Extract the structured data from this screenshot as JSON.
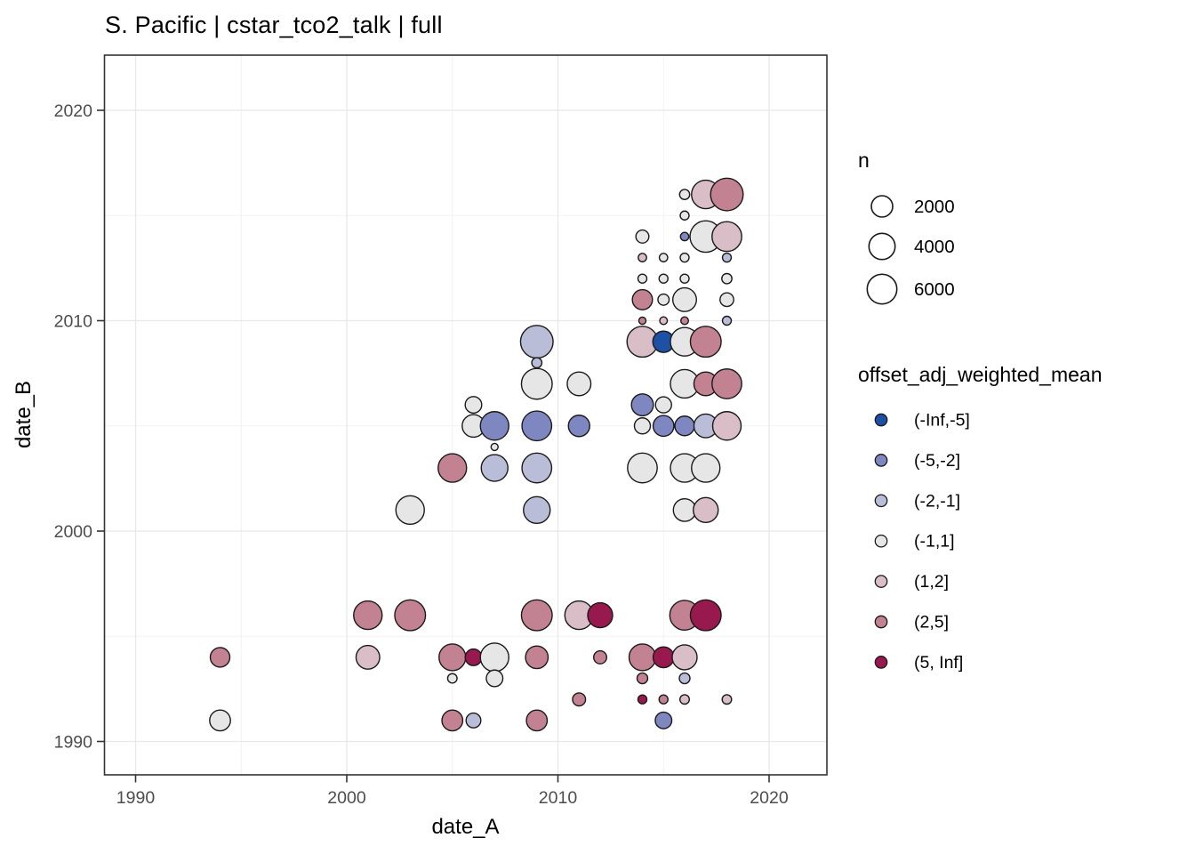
{
  "title": "S. Pacific | cstar_tco2_talk | full",
  "x_axis": {
    "label": "date_A",
    "ticks": [
      1990,
      2000,
      2010,
      2020
    ],
    "minor": [
      1995,
      2005,
      2015
    ],
    "range": [
      1988.5,
      2022.7
    ]
  },
  "y_axis": {
    "label": "date_B",
    "ticks": [
      1990,
      2000,
      2010,
      2020
    ],
    "minor": [
      1995,
      2005,
      2015
    ],
    "range": [
      1988.4,
      2022.6
    ]
  },
  "legend_size": {
    "title": "n",
    "entries": [
      {
        "label": "2000",
        "n": 2000,
        "r": 12
      },
      {
        "label": "4000",
        "n": 4000,
        "r": 14.7
      },
      {
        "label": "6000",
        "n": 6000,
        "r": 16.7
      }
    ]
  },
  "legend_color": {
    "title": "offset_adj_weighted_mean",
    "entries": [
      {
        "label": "(-Inf,-5]",
        "color": "#1e51a5"
      },
      {
        "label": "(-5,-2]",
        "color": "#7f87c1"
      },
      {
        "label": "(-2,-1]",
        "color": "#babdd8"
      },
      {
        "label": "(-1,1]",
        "color": "#e6e6e6"
      },
      {
        "label": "(1,2]",
        "color": "#d9bdc7"
      },
      {
        "label": "(2,5]",
        "color": "#c28291"
      },
      {
        "label": "(5, Inf]",
        "color": "#97194d"
      }
    ]
  },
  "chart_data": {
    "type": "scatter",
    "subtype": "bubble",
    "title": "S. Pacific | cstar_tco2_talk | full",
    "xlabel": "date_A",
    "ylabel": "date_B",
    "xlim": [
      1988.5,
      2022.7
    ],
    "ylim": [
      1988.4,
      2022.6
    ],
    "grid": "on",
    "legend_position": "right",
    "size_breaks": [
      2000,
      4000,
      6000
    ],
    "color_bins": [
      "(-Inf,-5]",
      "(-5,-2]",
      "(-2,-1]",
      "(-1,1]",
      "(1,2]",
      "(2,5]",
      "(5, Inf]"
    ],
    "bin_colors": [
      "#1e51a5",
      "#7f87c1",
      "#babdd8",
      "#e6e6e6",
      "#d9bdc7",
      "#c28291",
      "#97194d"
    ],
    "points_format": [
      "date_A",
      "date_B",
      "n_est",
      "bin_index",
      "r_px"
    ],
    "points": [
      [
        2016,
        2016,
        300,
        3,
        5.7
      ],
      [
        2017,
        2016,
        5300,
        4,
        16
      ],
      [
        2018,
        2016,
        7800,
        5,
        18.3
      ],
      [
        2016,
        2015,
        200,
        3,
        5
      ],
      [
        2014,
        2014,
        600,
        3,
        7.3
      ],
      [
        2016,
        2014,
        160,
        1,
        4.7
      ],
      [
        2017,
        2014,
        7100,
        3,
        17.7
      ],
      [
        2018,
        2014,
        6000,
        4,
        16.7
      ],
      [
        2014,
        2013,
        160,
        4,
        4.7
      ],
      [
        2015,
        2013,
        160,
        3,
        4.7
      ],
      [
        2016,
        2013,
        200,
        3,
        5
      ],
      [
        2018,
        2013,
        200,
        2,
        5
      ],
      [
        2014,
        2012,
        200,
        3,
        5
      ],
      [
        2015,
        2012,
        200,
        3,
        5
      ],
      [
        2016,
        2012,
        200,
        3,
        5
      ],
      [
        2018,
        2012,
        300,
        3,
        5.7
      ],
      [
        2014,
        2011,
        1600,
        5,
        11.3
      ],
      [
        2015,
        2011,
        400,
        3,
        6.3
      ],
      [
        2016,
        2011,
        2900,
        3,
        13.3
      ],
      [
        2018,
        2011,
        700,
        3,
        7.7
      ],
      [
        2014,
        2010,
        100,
        5,
        4
      ],
      [
        2015,
        2010,
        120,
        4,
        4.3
      ],
      [
        2016,
        2010,
        120,
        5,
        4.3
      ],
      [
        2018,
        2010,
        200,
        2,
        5
      ],
      [
        2009,
        2009,
        7800,
        2,
        18.3
      ],
      [
        2014,
        2009,
        6700,
        4,
        17.3
      ],
      [
        2015,
        2009,
        2000,
        0,
        12
      ],
      [
        2016,
        2009,
        5300,
        3,
        16
      ],
      [
        2017,
        2009,
        6700,
        5,
        17.3
      ],
      [
        2009,
        2008,
        300,
        2,
        5.7
      ],
      [
        2009,
        2007,
        6700,
        3,
        17.3
      ],
      [
        2011,
        2007,
        2900,
        3,
        13.3
      ],
      [
        2016,
        2007,
        5300,
        3,
        16
      ],
      [
        2017,
        2007,
        2900,
        5,
        13.3
      ],
      [
        2018,
        2007,
        6000,
        5,
        16.7
      ],
      [
        2006,
        2006,
        1200,
        3,
        9.3
      ],
      [
        2014,
        2006,
        2200,
        1,
        12.3
      ],
      [
        2015,
        2006,
        1000,
        3,
        9
      ],
      [
        2006,
        2005,
        2500,
        3,
        12.7
      ],
      [
        2007,
        2005,
        5300,
        1,
        16
      ],
      [
        2009,
        2005,
        6000,
        1,
        16.7
      ],
      [
        2011,
        2005,
        2000,
        1,
        12
      ],
      [
        2014,
        2005,
        1000,
        3,
        9
      ],
      [
        2015,
        2005,
        1800,
        1,
        11.7
      ],
      [
        2016,
        2005,
        1400,
        1,
        11
      ],
      [
        2017,
        2005,
        2900,
        2,
        13.3
      ],
      [
        2018,
        2005,
        5300,
        4,
        16
      ],
      [
        2007,
        2004,
        100,
        3,
        4
      ],
      [
        2005,
        2003,
        5300,
        5,
        16
      ],
      [
        2007,
        2003,
        4300,
        2,
        15
      ],
      [
        2009,
        2003,
        6000,
        2,
        16.7
      ],
      [
        2014,
        2003,
        6000,
        3,
        16.7
      ],
      [
        2016,
        2003,
        5300,
        3,
        16
      ],
      [
        2017,
        2003,
        5300,
        3,
        16
      ],
      [
        2003,
        2001,
        5300,
        3,
        16
      ],
      [
        2009,
        2001,
        4300,
        2,
        15
      ],
      [
        2016,
        2001,
        2500,
        3,
        12.7
      ],
      [
        2017,
        2001,
        3400,
        4,
        14
      ],
      [
        2001,
        1996,
        5300,
        5,
        16
      ],
      [
        2003,
        1996,
        6700,
        5,
        17.3
      ],
      [
        2009,
        1996,
        6700,
        5,
        17.3
      ],
      [
        2011,
        1996,
        5300,
        4,
        16
      ],
      [
        2012,
        1996,
        3400,
        6,
        14
      ],
      [
        2016,
        1996,
        6000,
        5,
        16.7
      ],
      [
        2017,
        1996,
        6700,
        6,
        17.3
      ],
      [
        1994,
        1994,
        1400,
        5,
        11
      ],
      [
        2001,
        1994,
        2900,
        4,
        13.3
      ],
      [
        2005,
        1994,
        4300,
        5,
        15
      ],
      [
        2006,
        1994,
        1200,
        6,
        9.3
      ],
      [
        2007,
        1994,
        5300,
        3,
        16
      ],
      [
        2009,
        1994,
        2500,
        5,
        12.7
      ],
      [
        2012,
        1994,
        600,
        5,
        7.3
      ],
      [
        2014,
        1994,
        4300,
        5,
        15
      ],
      [
        2015,
        1994,
        1800,
        6,
        11.7
      ],
      [
        2016,
        1994,
        3400,
        4,
        14
      ],
      [
        2005,
        1993,
        250,
        3,
        5.3
      ],
      [
        2007,
        1993,
        1200,
        3,
        9.3
      ],
      [
        2014,
        1993,
        350,
        5,
        6
      ],
      [
        2016,
        1993,
        350,
        2,
        6
      ],
      [
        2011,
        1992,
        600,
        5,
        7.3
      ],
      [
        2014,
        1992,
        200,
        6,
        5
      ],
      [
        2015,
        1992,
        200,
        5,
        5
      ],
      [
        2016,
        1992,
        250,
        4,
        5.3
      ],
      [
        2018,
        1992,
        250,
        4,
        5.3
      ],
      [
        1994,
        1991,
        1800,
        3,
        11.7
      ],
      [
        2005,
        1991,
        1800,
        5,
        11.7
      ],
      [
        2006,
        1991,
        900,
        2,
        8.3
      ],
      [
        2009,
        1991,
        1800,
        5,
        11.7
      ],
      [
        2015,
        1991,
        1200,
        1,
        9.3
      ]
    ]
  }
}
